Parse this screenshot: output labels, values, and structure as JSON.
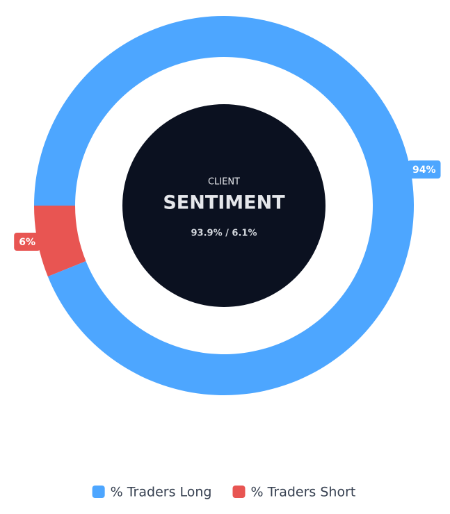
{
  "chart_data": {
    "type": "doughnut",
    "center_label": "CLIENT",
    "center_title": "SENTIMENT",
    "center_subtitle": "93.9% / 6.1%",
    "categories": [
      "% Traders Long",
      "% Traders Short"
    ],
    "values": [
      93.9,
      6.1
    ],
    "value_labels": [
      "94%",
      "6%"
    ],
    "colors": [
      "#4da6ff",
      "#e85552"
    ],
    "legend": "bottom"
  }
}
